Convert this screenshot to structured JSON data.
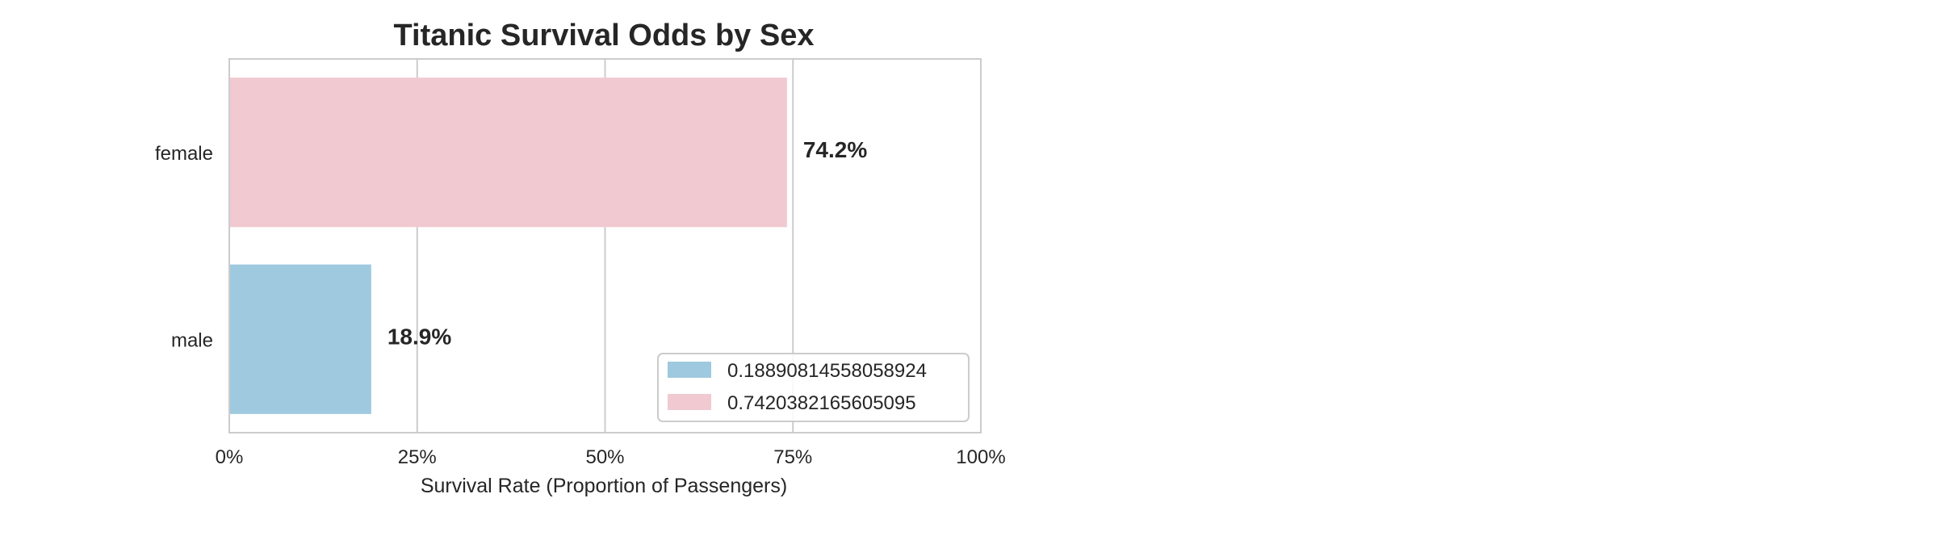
{
  "chart_data": {
    "type": "bar",
    "orientation": "horizontal",
    "title": "Titanic Survival Odds by Sex",
    "xlabel": "Survival Rate (Proportion of Passengers)",
    "ylabel": "",
    "xlim": [
      0,
      1
    ],
    "x_ticks": [
      0,
      0.25,
      0.5,
      0.75,
      1.0
    ],
    "x_tick_labels": [
      "0%",
      "25%",
      "50%",
      "75%",
      "100%"
    ],
    "categories": [
      "female",
      "male"
    ],
    "values": [
      0.7420382165605095,
      0.18890814558058924
    ],
    "data_labels": [
      "74.2%",
      "18.9%"
    ],
    "colors": [
      "#f0c9d1",
      "#9fc9de"
    ],
    "grid": "vertical",
    "legend": {
      "placement": "lower-right",
      "entries": [
        {
          "label": "0.18890814558058924",
          "color": "#9fc9de"
        },
        {
          "label": "0.7420382165605095",
          "color": "#f0c9d1"
        }
      ]
    }
  }
}
